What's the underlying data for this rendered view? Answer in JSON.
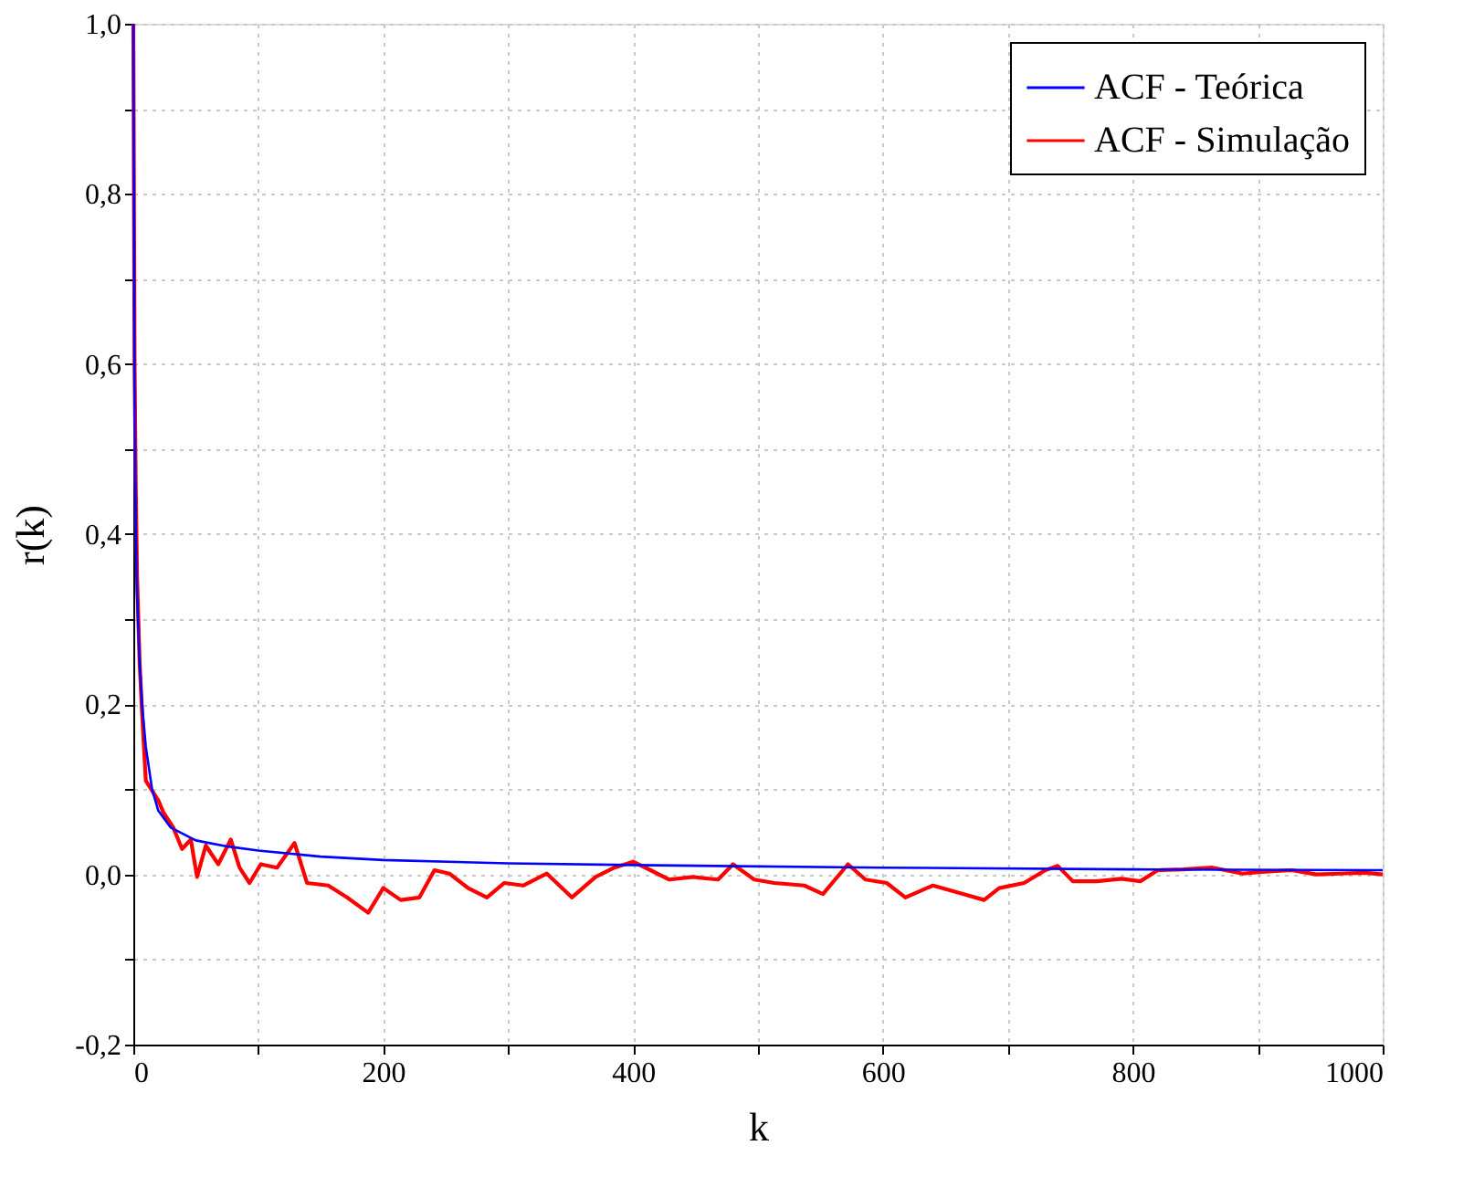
{
  "chart_data": {
    "type": "line",
    "xlabel": "k",
    "ylabel": "r(k)",
    "xlim": [
      0,
      1000
    ],
    "ylim": [
      -0.2,
      1.0
    ],
    "xticks": [
      0,
      {
        "value": 100,
        "label": null
      },
      200,
      {
        "value": 300,
        "label": null
      },
      400,
      {
        "value": 500,
        "label": null
      },
      600,
      {
        "value": 700,
        "label": null
      },
      800,
      {
        "value": 900,
        "label": null
      },
      1000
    ],
    "yticks": [
      {
        "value": -0.2,
        "label": "-0,2"
      },
      {
        "value": -0.1,
        "label": null
      },
      {
        "value": 0.0,
        "label": "0,0"
      },
      {
        "value": 0.1,
        "label": null
      },
      {
        "value": 0.2,
        "label": "0,2"
      },
      {
        "value": 0.3,
        "label": null
      },
      {
        "value": 0.4,
        "label": "0,4"
      },
      {
        "value": 0.5,
        "label": null
      },
      {
        "value": 0.6,
        "label": "0,6"
      },
      {
        "value": 0.7,
        "label": null
      },
      {
        "value": 0.8,
        "label": "0,8"
      },
      {
        "value": 0.9,
        "label": null
      },
      {
        "value": 1.0,
        "label": "1,0"
      }
    ],
    "grid": true,
    "legend": "top right",
    "marker": "none",
    "line_style": "solid",
    "series": [
      {
        "name": "ACF - Teórica",
        "color": "#0000ff",
        "x": [
          0,
          1,
          2,
          3,
          5,
          7,
          10,
          15,
          20,
          30,
          50,
          75,
          100,
          150,
          200,
          300,
          400,
          600,
          800,
          1000
        ],
        "values": [
          1.0,
          0.55,
          0.4,
          0.33,
          0.25,
          0.2,
          0.15,
          0.1,
          0.075,
          0.055,
          0.04,
          0.033,
          0.028,
          0.021,
          0.017,
          0.013,
          0.011,
          0.008,
          0.006,
          0.005
        ]
      },
      {
        "name": "ACF - Simulação",
        "color": "#ff0000",
        "x": [
          0,
          1,
          2,
          3,
          5,
          7,
          10,
          20,
          24,
          32,
          39,
          46,
          51,
          58,
          68,
          78,
          85,
          93,
          102,
          115,
          129,
          139,
          156,
          171,
          188,
          200,
          214,
          229,
          241,
          253,
          268,
          283,
          297,
          312,
          331,
          351,
          370,
          385,
          400,
          414,
          429,
          448,
          468,
          480,
          497,
          513,
          537,
          552,
          572,
          586,
          603,
          618,
          640,
          664,
          681,
          693,
          713,
          730,
          740,
          752,
          771,
          791,
          806,
          820,
          840,
          864,
          888,
          903,
          927,
          947,
          966,
          986,
          1000
        ],
        "values": [
          1.0,
          0.6,
          0.45,
          0.35,
          0.25,
          0.19,
          0.11,
          0.087,
          0.073,
          0.055,
          0.03,
          0.041,
          -0.003,
          0.034,
          0.012,
          0.041,
          0.008,
          -0.01,
          0.012,
          0.008,
          0.037,
          -0.01,
          -0.013,
          -0.027,
          -0.045,
          -0.016,
          -0.03,
          -0.027,
          0.005,
          0.001,
          -0.016,
          -0.027,
          -0.01,
          -0.013,
          0.001,
          -0.027,
          -0.003,
          0.008,
          0.015,
          0.005,
          -0.006,
          -0.003,
          -0.006,
          0.012,
          -0.006,
          -0.01,
          -0.013,
          -0.023,
          0.012,
          -0.006,
          -0.01,
          -0.027,
          -0.013,
          -0.023,
          -0.03,
          -0.016,
          -0.01,
          0.005,
          0.01,
          -0.008,
          -0.008,
          -0.005,
          -0.008,
          0.005,
          0.006,
          0.008,
          0.001,
          0.003,
          0.005,
          0.0,
          0.001,
          0.002,
          0.0
        ]
      }
    ]
  }
}
